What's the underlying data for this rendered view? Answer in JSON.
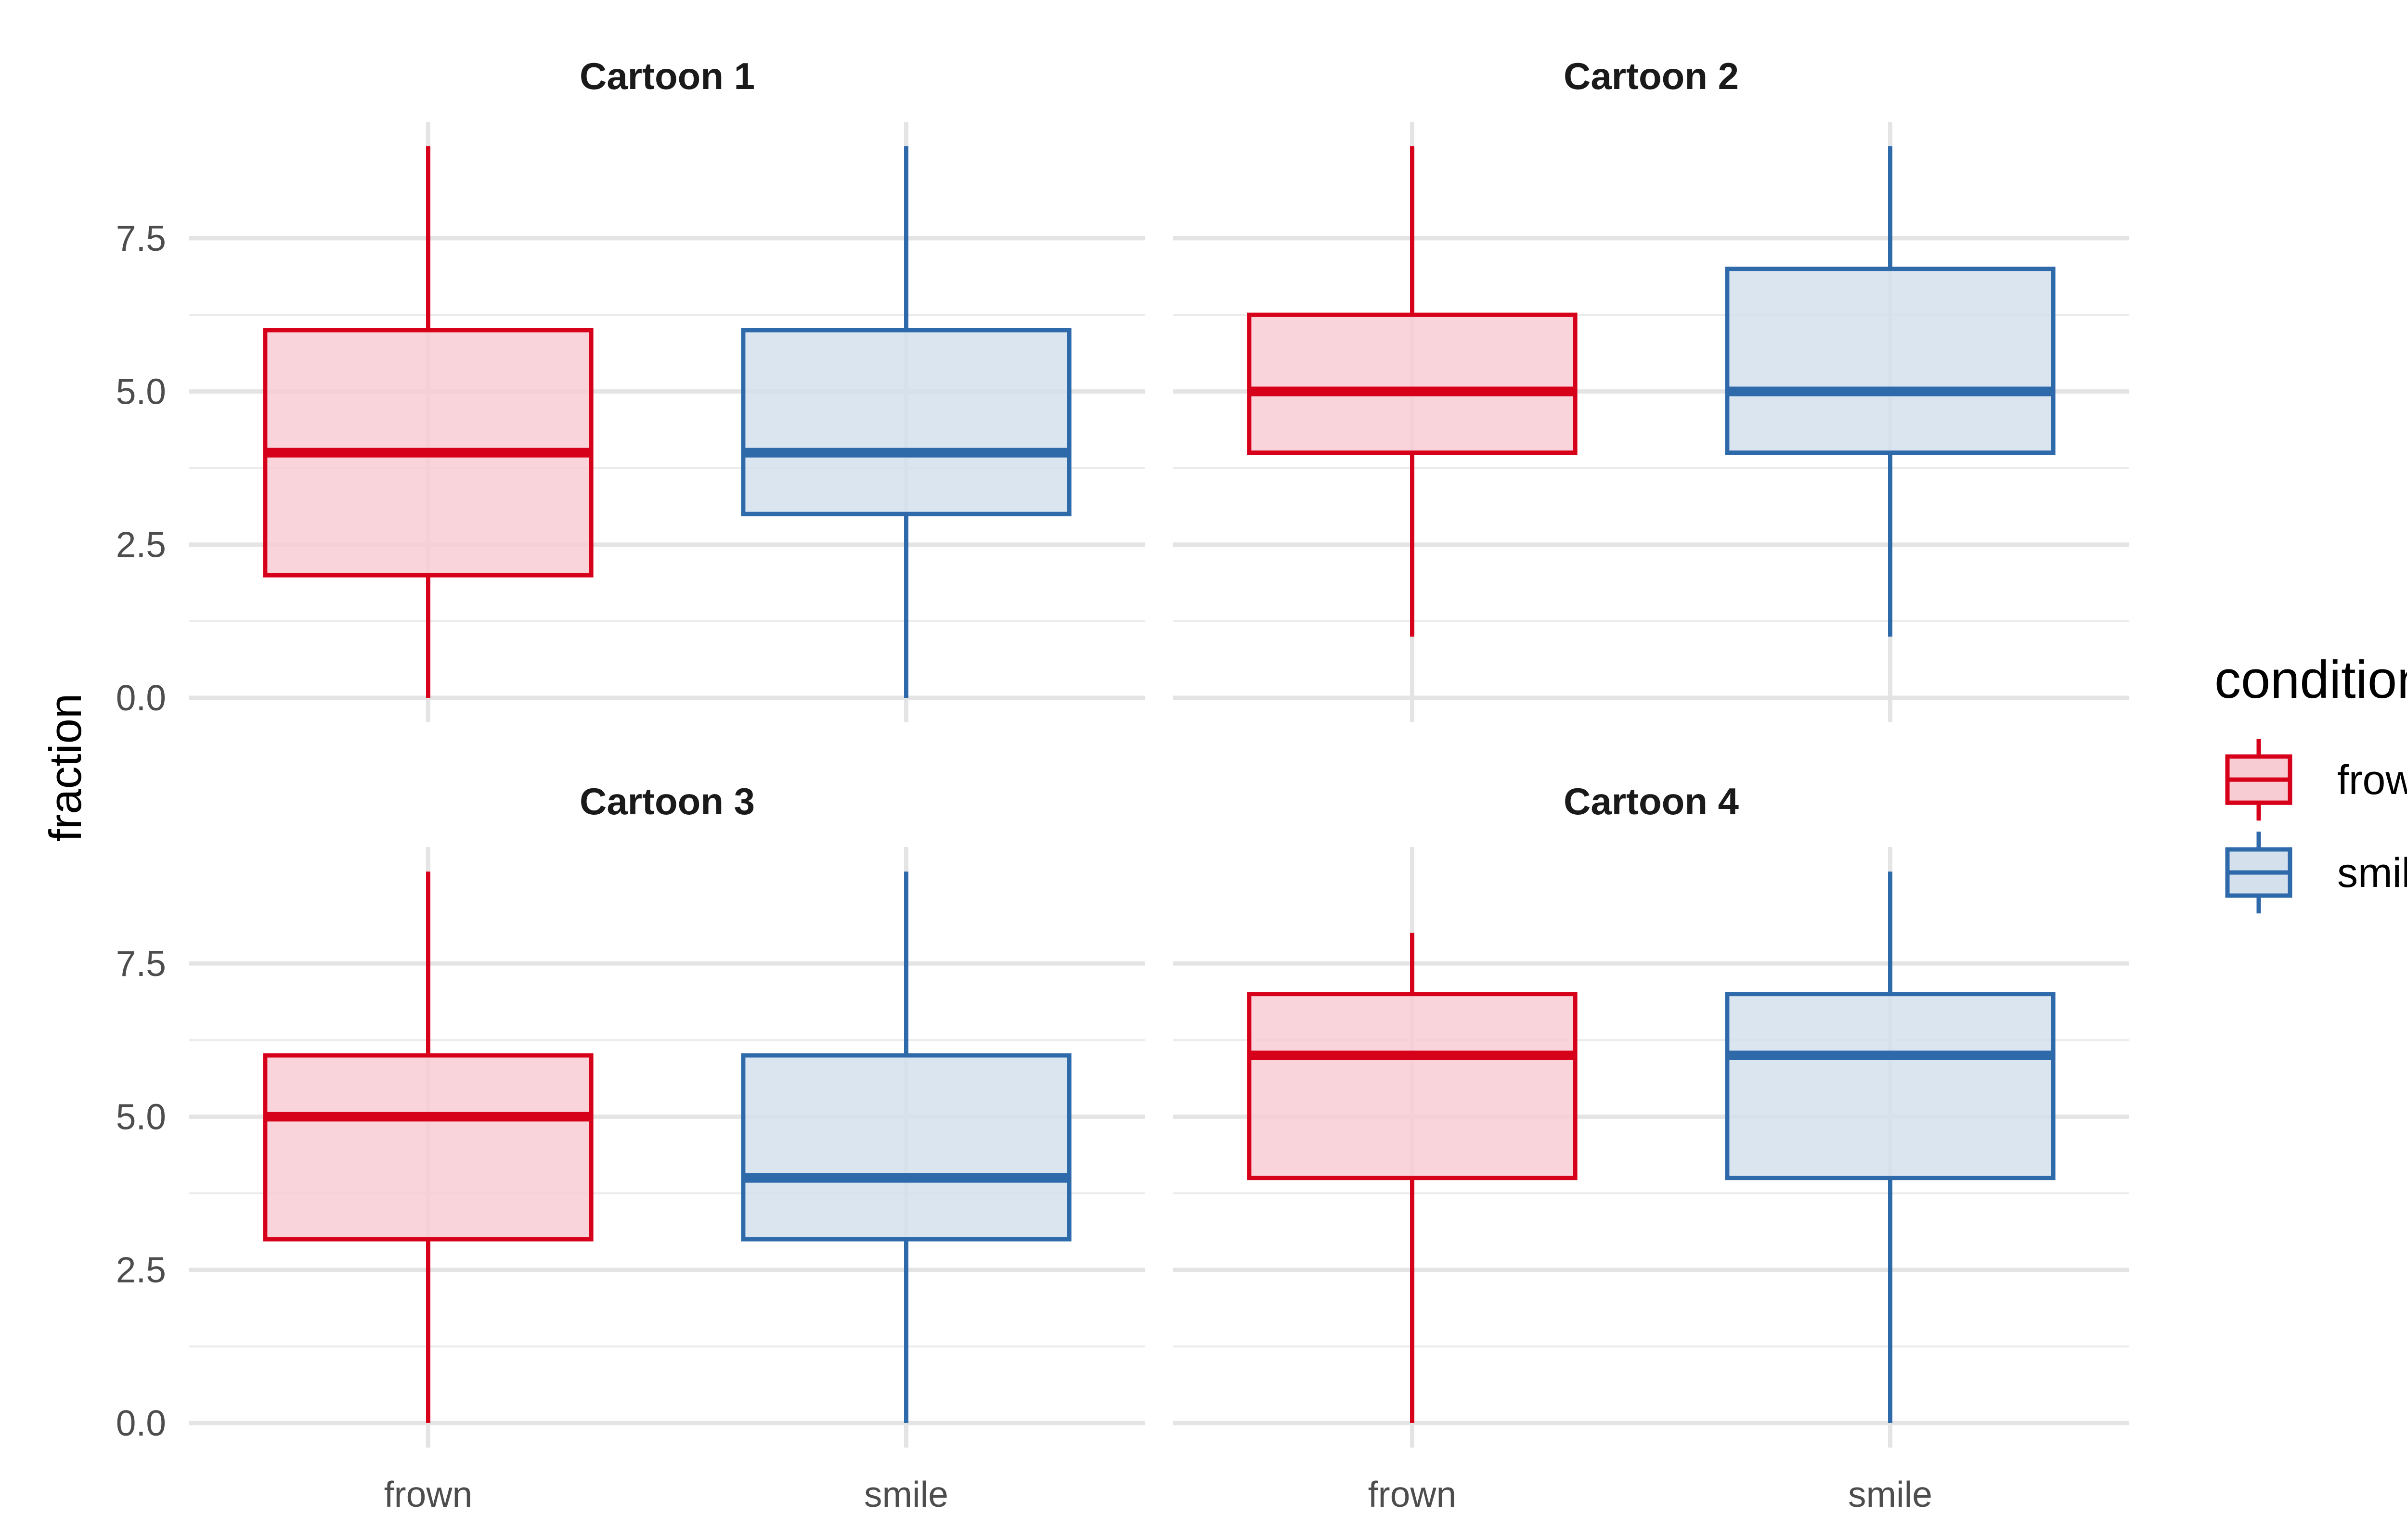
{
  "chart_data": {
    "type": "box",
    "ylabel": "fraction",
    "categories": [
      "frown",
      "smile"
    ],
    "yticks": [
      "0.0",
      "2.5",
      "5.0",
      "7.5"
    ],
    "ylim": [
      -0.4,
      9.4
    ],
    "grid": true,
    "legend": {
      "title": "condition",
      "position": "right",
      "entries": [
        {
          "name": "frown",
          "color": "#d7001a",
          "fill": "#f8ccd3"
        },
        {
          "name": "smile",
          "color": "#2e69aa",
          "fill": "#d5e0ed"
        }
      ]
    },
    "panels": [
      {
        "title": "Cartoon 1",
        "boxes": [
          {
            "group": "frown",
            "min": 0,
            "q1": 2,
            "median": 4,
            "q3": 6,
            "max": 9
          },
          {
            "group": "smile",
            "min": 0,
            "q1": 3,
            "median": 4,
            "q3": 6,
            "max": 9
          }
        ]
      },
      {
        "title": "Cartoon 2",
        "boxes": [
          {
            "group": "frown",
            "min": 1,
            "q1": 4,
            "median": 5,
            "q3": 6.25,
            "max": 9
          },
          {
            "group": "smile",
            "min": 1,
            "q1": 4,
            "median": 5,
            "q3": 7,
            "max": 9
          }
        ]
      },
      {
        "title": "Cartoon 3",
        "boxes": [
          {
            "group": "frown",
            "min": 0,
            "q1": 3,
            "median": 5,
            "q3": 6,
            "max": 9
          },
          {
            "group": "smile",
            "min": 0,
            "q1": 3,
            "median": 4,
            "q3": 6,
            "max": 9
          }
        ]
      },
      {
        "title": "Cartoon 4",
        "boxes": [
          {
            "group": "frown",
            "min": 0,
            "q1": 4,
            "median": 6,
            "q3": 7,
            "max": 8
          },
          {
            "group": "smile",
            "min": 0,
            "q1": 4,
            "median": 6,
            "q3": 7,
            "max": 9
          }
        ]
      }
    ]
  }
}
